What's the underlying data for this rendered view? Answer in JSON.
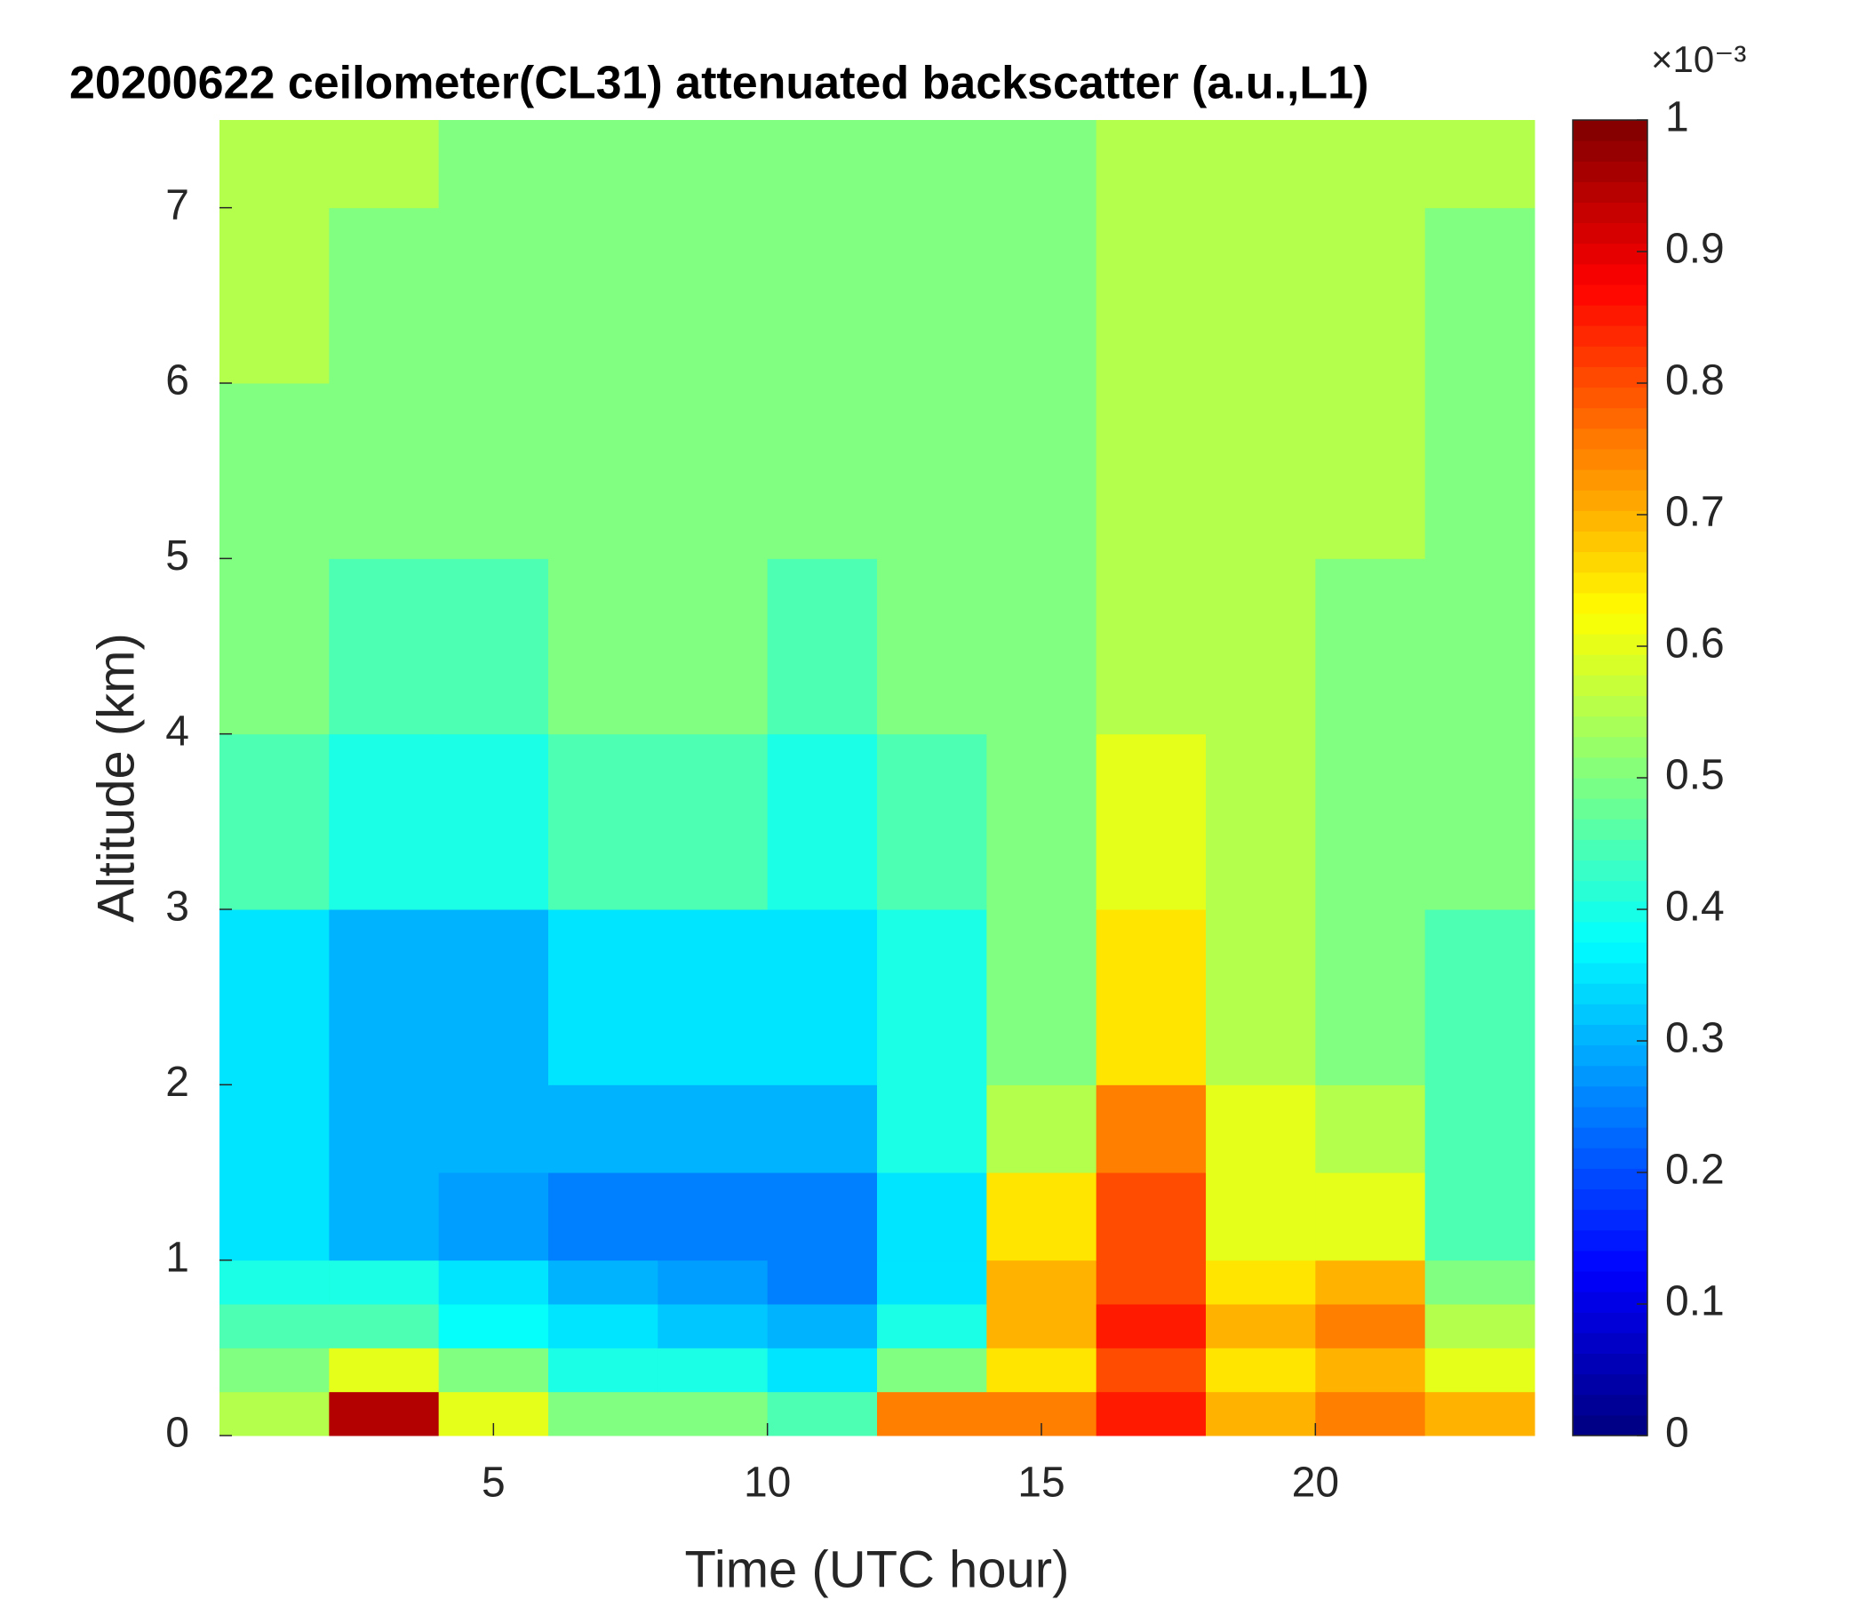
{
  "chart_data": {
    "type": "heatmap",
    "title": "20200622 ceilometer(CL31) attenuated backscatter (a.u.,L1)",
    "x_label": "Time (UTC hour)",
    "y_label": "Altitude (km)",
    "colorbar_label": "×10⁻³",
    "colormap": "jet",
    "x_edges": [
      0,
      2,
      4,
      6,
      8,
      10,
      12,
      14,
      16,
      18,
      20,
      22,
      24
    ],
    "y_edges": [
      0,
      0.25,
      0.5,
      0.75,
      1,
      1.5,
      2,
      3,
      4,
      5,
      6,
      7,
      7.5
    ],
    "z": [
      [
        0.55,
        0.95,
        0.6,
        0.5,
        0.5,
        0.45,
        0.75,
        0.75,
        0.85,
        0.7,
        0.75,
        0.7
      ],
      [
        0.5,
        0.6,
        0.5,
        0.4,
        0.4,
        0.35,
        0.5,
        0.65,
        0.8,
        0.65,
        0.7,
        0.6
      ],
      [
        0.45,
        0.45,
        0.38,
        0.35,
        0.32,
        0.3,
        0.4,
        0.7,
        0.85,
        0.7,
        0.75,
        0.55
      ],
      [
        0.4,
        0.4,
        0.35,
        0.3,
        0.28,
        0.25,
        0.35,
        0.7,
        0.8,
        0.65,
        0.7,
        0.5
      ],
      [
        0.35,
        0.3,
        0.28,
        0.25,
        0.25,
        0.25,
        0.35,
        0.65,
        0.8,
        0.6,
        0.6,
        0.45
      ],
      [
        0.35,
        0.3,
        0.3,
        0.3,
        0.3,
        0.3,
        0.4,
        0.55,
        0.75,
        0.6,
        0.55,
        0.45
      ],
      [
        0.35,
        0.3,
        0.3,
        0.35,
        0.35,
        0.35,
        0.4,
        0.5,
        0.65,
        0.55,
        0.5,
        0.45
      ],
      [
        0.45,
        0.4,
        0.4,
        0.45,
        0.45,
        0.4,
        0.45,
        0.5,
        0.6,
        0.55,
        0.5,
        0.5
      ],
      [
        0.5,
        0.45,
        0.45,
        0.5,
        0.5,
        0.45,
        0.5,
        0.5,
        0.55,
        0.55,
        0.5,
        0.5
      ],
      [
        0.5,
        0.5,
        0.5,
        0.5,
        0.5,
        0.5,
        0.5,
        0.5,
        0.55,
        0.55,
        0.55,
        0.5
      ],
      [
        0.55,
        0.5,
        0.5,
        0.5,
        0.5,
        0.5,
        0.5,
        0.5,
        0.55,
        0.55,
        0.55,
        0.5
      ],
      [
        0.55,
        0.55,
        0.5,
        0.5,
        0.5,
        0.5,
        0.5,
        0.5,
        0.55,
        0.55,
        0.55,
        0.55
      ]
    ],
    "xlim": [
      0,
      24
    ],
    "xticks": [
      5,
      10,
      15,
      20
    ],
    "ylim": [
      0,
      7.5
    ],
    "yticks": [
      0,
      1,
      2,
      3,
      4,
      5,
      6,
      7
    ],
    "clim": [
      0,
      1
    ],
    "cticks": [
      0,
      0.1,
      0.2,
      0.3,
      0.4,
      0.5,
      0.6,
      0.7,
      0.8,
      0.9,
      1
    ]
  }
}
